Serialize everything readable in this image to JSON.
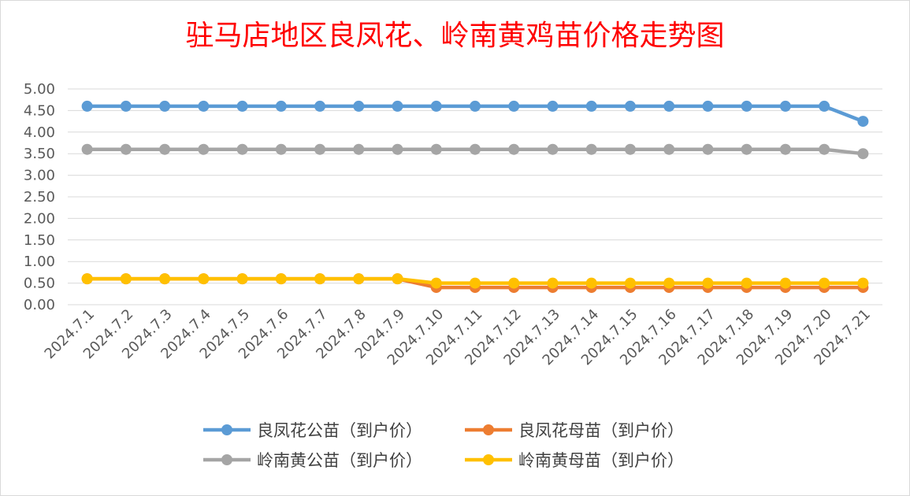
{
  "chart_data": {
    "type": "line",
    "title": "驻马店地区良凤花、岭南黄鸡苗价格走势图",
    "categories": [
      "2024.7.1",
      "2024.7.2",
      "2024.7.3",
      "2024.7.4",
      "2024.7.5",
      "2024.7.6",
      "2024.7.7",
      "2024.7.8",
      "2024.7.9",
      "2024.7.10",
      "2024.7.11",
      "2024.7.12",
      "2024.7.13",
      "2024.7.14",
      "2024.7.15",
      "2024.7.16",
      "2024.7.17",
      "2024.7.18",
      "2024.7.19",
      "2024.7.20",
      "2024.7.21"
    ],
    "y_ticks": [
      "0.00",
      "0.50",
      "1.00",
      "1.50",
      "2.00",
      "2.50",
      "3.00",
      "3.50",
      "4.00",
      "4.50",
      "5.00"
    ],
    "ylim": [
      0,
      5
    ],
    "grid": true,
    "legend_position": "bottom",
    "series": [
      {
        "name": "良凤花公苗（到户价）",
        "color": "#5b9bd5",
        "values": [
          4.6,
          4.6,
          4.6,
          4.6,
          4.6,
          4.6,
          4.6,
          4.6,
          4.6,
          4.6,
          4.6,
          4.6,
          4.6,
          4.6,
          4.6,
          4.6,
          4.6,
          4.6,
          4.6,
          4.6,
          4.25
        ]
      },
      {
        "name": "良凤花母苗（到户价）",
        "color": "#ed7d31",
        "values": [
          0.6,
          0.6,
          0.6,
          0.6,
          0.6,
          0.6,
          0.6,
          0.6,
          0.6,
          0.4,
          0.4,
          0.4,
          0.4,
          0.4,
          0.4,
          0.4,
          0.4,
          0.4,
          0.4,
          0.4,
          0.4
        ]
      },
      {
        "name": "岭南黄公苗（到户价）",
        "color": "#a5a5a5",
        "values": [
          3.6,
          3.6,
          3.6,
          3.6,
          3.6,
          3.6,
          3.6,
          3.6,
          3.6,
          3.6,
          3.6,
          3.6,
          3.6,
          3.6,
          3.6,
          3.6,
          3.6,
          3.6,
          3.6,
          3.6,
          3.5
        ]
      },
      {
        "name": "岭南黄母苗（到户价）",
        "color": "#ffc000",
        "values": [
          0.6,
          0.6,
          0.6,
          0.6,
          0.6,
          0.6,
          0.6,
          0.6,
          0.6,
          0.5,
          0.5,
          0.5,
          0.5,
          0.5,
          0.5,
          0.5,
          0.5,
          0.5,
          0.5,
          0.5,
          0.5
        ]
      }
    ]
  }
}
